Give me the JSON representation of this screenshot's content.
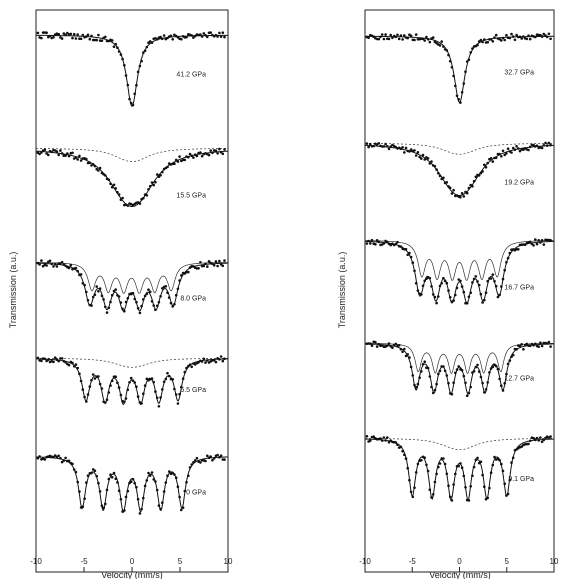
{
  "chart_data": [
    {
      "type": "scatter",
      "title": "",
      "xlabel": "Velocity (mm/s)",
      "ylabel": "Transmission (a.u.)",
      "xlim": [
        -10,
        10
      ],
      "xticks": [
        "-10",
        "-5",
        "0",
        "5",
        "10"
      ],
      "grid": false,
      "spectra": [
        {
          "label": "41.2 GPa",
          "lines": [
            0
          ],
          "depth": 0.95,
          "width": 0.7
        },
        {
          "label": "15.5 GPa",
          "lines": [
            -1,
            0,
            1
          ],
          "depth": 0.65,
          "width": 2.2,
          "sub": "doublet"
        },
        {
          "label": "8.0 GPa",
          "lines": [
            -4.4,
            -2.6,
            -0.9,
            0.8,
            2.5,
            4.3
          ],
          "depth": 0.7,
          "width": 0.6,
          "sub": "sextet"
        },
        {
          "label": "5.5 GPa",
          "lines": [
            -4.8,
            -2.8,
            -0.9,
            0.9,
            2.8,
            4.8
          ],
          "depth": 0.75,
          "width": 0.5,
          "sub": "doublet"
        },
        {
          "label": "0 GPa",
          "lines": [
            -5.2,
            -3.0,
            -0.9,
            0.9,
            3.0,
            5.2
          ],
          "depth": 0.8,
          "width": 0.45
        }
      ]
    },
    {
      "type": "scatter",
      "title": "",
      "xlabel": "Velocity (mm/s)",
      "ylabel": "Transmission (a.u.)",
      "xlim": [
        -10,
        10
      ],
      "xticks": [
        "-10",
        "-5",
        "0",
        "5",
        "10"
      ],
      "grid": false,
      "spectra": [
        {
          "label": "32.7 GPa",
          "lines": [
            0
          ],
          "depth": 0.95,
          "width": 0.7
        },
        {
          "label": "19.2 GPa",
          "lines": [
            -1,
            0,
            1
          ],
          "depth": 0.7,
          "width": 2.0,
          "sub": "doublet"
        },
        {
          "label": "16.7 GPa",
          "lines": [
            -4.2,
            -2.5,
            -0.8,
            0.8,
            2.5,
            4.2
          ],
          "depth": 0.7,
          "width": 0.6,
          "sub": "sextet"
        },
        {
          "label": "12.7 GPa",
          "lines": [
            -4.6,
            -2.7,
            -0.9,
            0.9,
            2.7,
            4.6
          ],
          "depth": 0.75,
          "width": 0.5,
          "sub": "sextet"
        },
        {
          "label": "9.1 GPa",
          "lines": [
            -5.0,
            -2.9,
            -0.9,
            0.9,
            2.9,
            5.0
          ],
          "depth": 0.8,
          "width": 0.45,
          "sub": "doublet"
        }
      ]
    }
  ]
}
